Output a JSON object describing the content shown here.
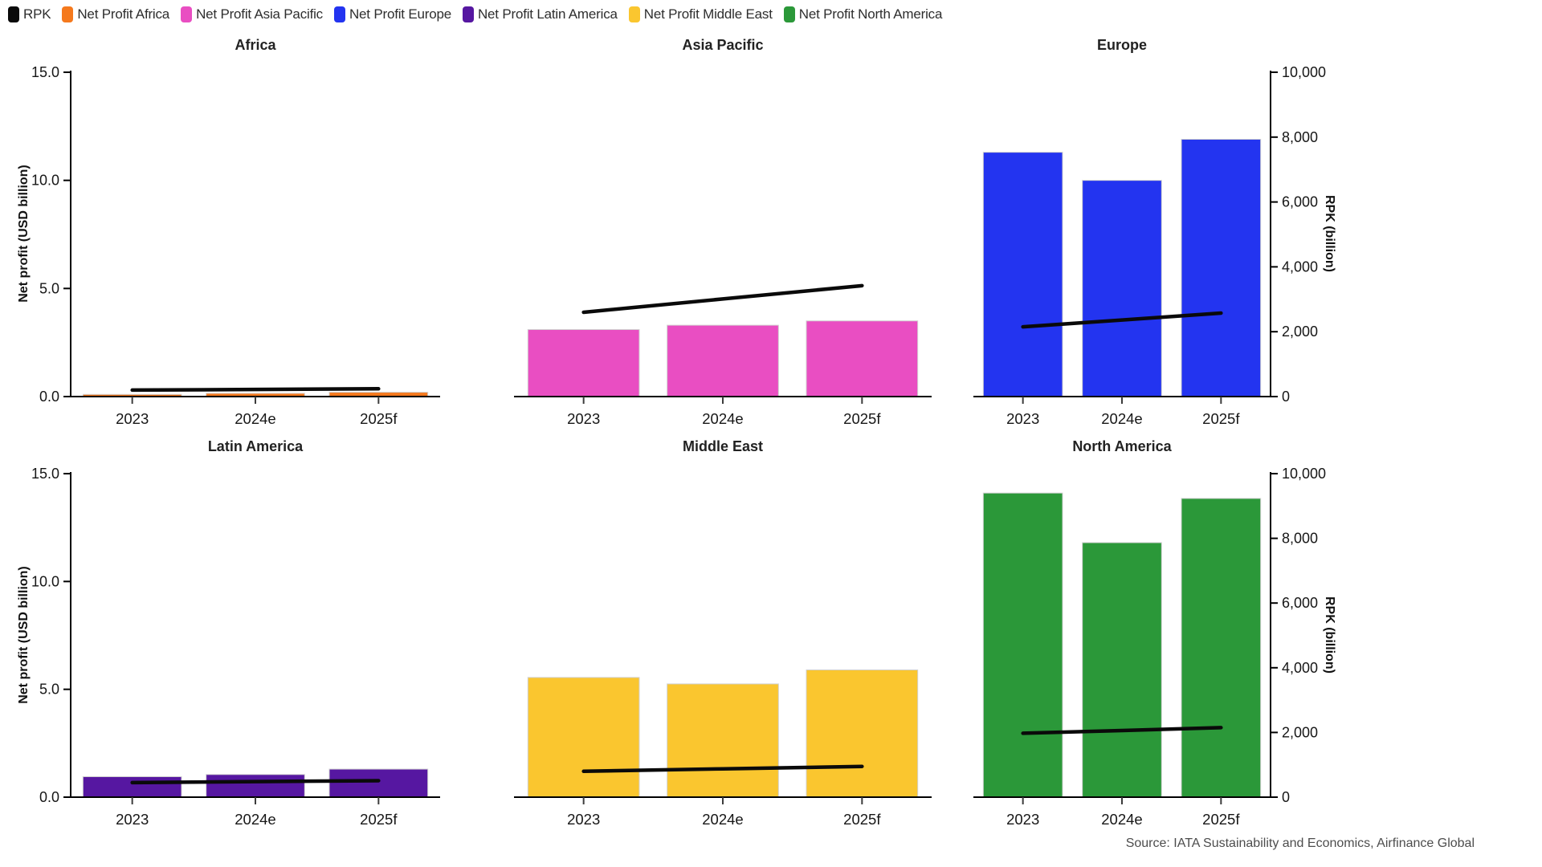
{
  "legend": {
    "items": [
      {
        "label": "RPK",
        "color": "#0a0a0a"
      },
      {
        "label": "Net Profit Africa",
        "color": "#f5791d"
      },
      {
        "label": "Net Profit Asia Pacific",
        "color": "#e94ec2"
      },
      {
        "label": "Net Profit Europe",
        "color": "#2334f0"
      },
      {
        "label": "Net Profit Latin America",
        "color": "#5617a1"
      },
      {
        "label": "Net Profit Middle East",
        "color": "#fac62f"
      },
      {
        "label": "Net Profit North America",
        "color": "#2b9839"
      }
    ]
  },
  "axes": {
    "left_label": "Net profit (USD billion)",
    "right_label": "RPK (billion)",
    "left_ticks": [
      "0.0",
      "5.0",
      "10.0",
      "15.0"
    ],
    "left_tick_values": [
      0,
      5,
      10,
      15
    ],
    "left_max": 15,
    "right_ticks": [
      "0",
      "2,000",
      "4,000",
      "6,000",
      "8,000",
      "10,000"
    ],
    "right_tick_values": [
      0,
      2000,
      4000,
      6000,
      8000,
      10000
    ],
    "right_max": 10000
  },
  "source": "Source: IATA Sustainability and Economics, Airfinance Global",
  "chart_data": [
    {
      "type": "bar",
      "title": "Africa",
      "categories": [
        "2023",
        "2024e",
        "2025f"
      ],
      "bar_series": {
        "name": "Net Profit Africa",
        "axis": "left",
        "color": "#f5791d",
        "values": [
          0.1,
          0.15,
          0.2
        ]
      },
      "line_series": {
        "name": "RPK",
        "axis": "right",
        "color": "#0a0a0a",
        "values": [
          200,
          220,
          240
        ]
      },
      "ylabel_left": "Net profit (USD billion)",
      "ylabel_right": "RPK (billion)",
      "ylim_left": [
        0,
        15
      ],
      "ylim_right": [
        0,
        10000
      ],
      "grid": false
    },
    {
      "type": "bar",
      "title": "Asia Pacific",
      "categories": [
        "2023",
        "2024e",
        "2025f"
      ],
      "bar_series": {
        "name": "Net Profit Asia Pacific",
        "axis": "left",
        "color": "#e94ec2",
        "values": [
          3.1,
          3.3,
          3.5
        ]
      },
      "line_series": {
        "name": "RPK",
        "axis": "right",
        "color": "#0a0a0a",
        "values": [
          2600,
          3010,
          3420
        ]
      },
      "ylabel_left": "Net profit (USD billion)",
      "ylabel_right": "RPK (billion)",
      "ylim_left": [
        0,
        15
      ],
      "ylim_right": [
        0,
        10000
      ],
      "grid": false
    },
    {
      "type": "bar",
      "title": "Europe",
      "categories": [
        "2023",
        "2024e",
        "2025f"
      ],
      "bar_series": {
        "name": "Net Profit Europe",
        "axis": "left",
        "color": "#2334f0",
        "values": [
          11.3,
          10.0,
          11.9
        ]
      },
      "line_series": {
        "name": "RPK",
        "axis": "right",
        "color": "#0a0a0a",
        "values": [
          2150,
          2360,
          2575
        ]
      },
      "ylabel_left": "Net profit (USD billion)",
      "ylabel_right": "RPK (billion)",
      "ylim_left": [
        0,
        15
      ],
      "ylim_right": [
        0,
        10000
      ],
      "grid": false
    },
    {
      "type": "bar",
      "title": "Latin America",
      "categories": [
        "2023",
        "2024e",
        "2025f"
      ],
      "bar_series": {
        "name": "Net Profit Latin America",
        "axis": "left",
        "color": "#5617a1",
        "values": [
          0.95,
          1.05,
          1.3
        ]
      },
      "line_series": {
        "name": "RPK",
        "axis": "right",
        "color": "#0a0a0a",
        "values": [
          450,
          480,
          510
        ]
      },
      "ylabel_left": "Net profit (USD billion)",
      "ylabel_right": "RPK (billion)",
      "ylim_left": [
        0,
        15
      ],
      "ylim_right": [
        0,
        10000
      ],
      "grid": false
    },
    {
      "type": "bar",
      "title": "Middle East",
      "categories": [
        "2023",
        "2024e",
        "2025f"
      ],
      "bar_series": {
        "name": "Net Profit Middle East",
        "axis": "left",
        "color": "#fac62f",
        "values": [
          5.55,
          5.25,
          5.9
        ]
      },
      "line_series": {
        "name": "RPK",
        "axis": "right",
        "color": "#0a0a0a",
        "values": [
          800,
          875,
          950
        ]
      },
      "ylabel_left": "Net profit (USD billion)",
      "ylabel_right": "RPK (billion)",
      "ylim_left": [
        0,
        15
      ],
      "ylim_right": [
        0,
        10000
      ],
      "grid": false
    },
    {
      "type": "bar",
      "title": "North America",
      "categories": [
        "2023",
        "2024e",
        "2025f"
      ],
      "bar_series": {
        "name": "Net Profit North America",
        "axis": "left",
        "color": "#2b9839",
        "values": [
          14.1,
          11.8,
          13.85
        ]
      },
      "line_series": {
        "name": "RPK",
        "axis": "right",
        "color": "#0a0a0a",
        "values": [
          1975,
          2060,
          2150
        ]
      },
      "ylabel_left": "Net profit (USD billion)",
      "ylabel_right": "RPK (billion)",
      "ylim_left": [
        0,
        15
      ],
      "ylim_right": [
        0,
        10000
      ],
      "grid": false
    }
  ]
}
